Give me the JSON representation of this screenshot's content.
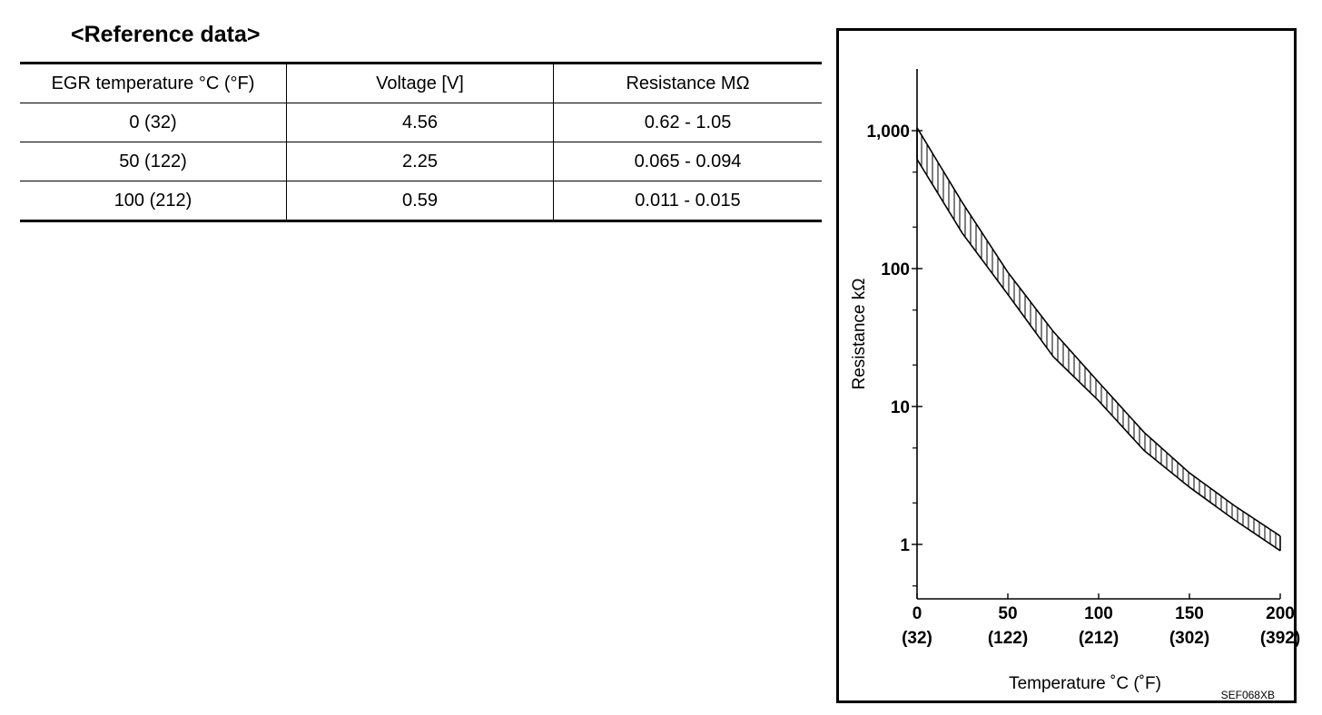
{
  "reference": {
    "title": "<Reference data>",
    "headers": [
      "EGR temperature °C (°F)",
      "Voltage [V]",
      "Resistance MΩ"
    ],
    "rows": [
      [
        "0 (32)",
        "4.56",
        "0.62 - 1.05"
      ],
      [
        "50 (122)",
        "2.25",
        "0.065 - 0.094"
      ],
      [
        "100 (212)",
        "0.59",
        "0.011 - 0.015"
      ]
    ]
  },
  "chart_data": {
    "type": "area",
    "xlabel": "Temperature ˚C  (˚F)",
    "ylabel": "Resistance kΩ",
    "x_ticks": [
      {
        "value": 0,
        "label": "0",
        "sublabel": "(32)"
      },
      {
        "value": 50,
        "label": "50",
        "sublabel": "(122)"
      },
      {
        "value": 100,
        "label": "100",
        "sublabel": "(212)"
      },
      {
        "value": 150,
        "label": "150",
        "sublabel": "(302)"
      },
      {
        "value": 200,
        "label": "200",
        "sublabel": "(392)"
      }
    ],
    "y_ticks": [
      {
        "value": 1,
        "label": "1"
      },
      {
        "value": 10,
        "label": "10"
      },
      {
        "value": 100,
        "label": "100"
      },
      {
        "value": 1000,
        "label": "1,000"
      }
    ],
    "y_scale": "log",
    "xlim": [
      0,
      200
    ],
    "ylim": [
      0.6,
      2000
    ],
    "band": {
      "x": [
        0,
        25,
        50,
        75,
        100,
        125,
        150,
        175,
        200
      ],
      "upper": [
        1050,
        300,
        94,
        35,
        15,
        6.5,
        3.3,
        1.9,
        1.15
      ],
      "lower": [
        620,
        180,
        65,
        23,
        11,
        4.8,
        2.6,
        1.5,
        0.9
      ]
    },
    "figure_code": "SEF068XB",
    "grid": false
  }
}
